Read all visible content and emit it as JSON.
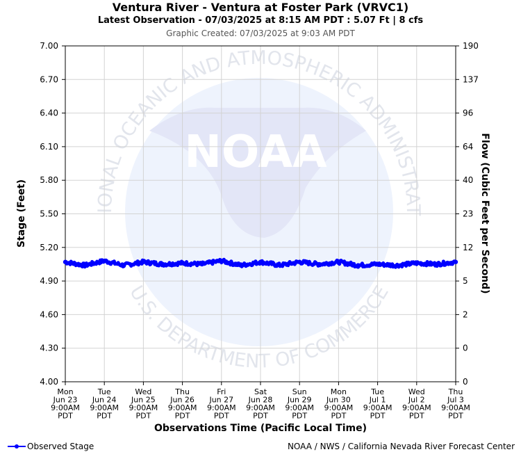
{
  "header": {
    "title": "Ventura River - Ventura at Foster Park (VRVC1)",
    "subtitle": "Latest Observation - 07/03/2025 at 8:15 AM PDT : 5.07 Ft | 8 cfs",
    "created": "Graphic Created: 07/03/2025 at 9:03 AM PDT"
  },
  "watermark": {
    "logo_text": "NOAA",
    "ring_top": "NATIONAL OCEANIC AND ATMOSPHERIC ADMINISTRATION",
    "ring_bottom": "U.S. DEPARTMENT OF COMMERCE"
  },
  "legend": {
    "label": "Observed Stage"
  },
  "footer": {
    "credit": "NOAA / NWS / California Nevada River Forecast Center"
  },
  "colors": {
    "series": "#0000ff",
    "grid": "#d3d3d3",
    "watermark": "#e8ebf8"
  },
  "chart_data": {
    "type": "line",
    "title": "Ventura River - Ventura at Foster Park (VRVC1)",
    "subtitle": "Latest Observation - 07/03/2025 at 8:15 AM PDT : 5.07 Ft | 8 cfs",
    "xlabel": "Observations Time (Pacific Local Time)",
    "ylabel": "Stage (Feet)",
    "ylabel_right": "Flow (Cubic Feet per Second)",
    "ylim": [
      4.0,
      7.0
    ],
    "y_ticks": [
      "7.00",
      "6.70",
      "6.40",
      "6.10",
      "5.80",
      "5.50",
      "5.20",
      "4.90",
      "4.60",
      "4.30",
      "4.00"
    ],
    "y_right_ticks": [
      "190",
      "137",
      "96",
      "64",
      "40",
      "23",
      "12",
      "5",
      "2",
      "0",
      "0"
    ],
    "x_ticks": [
      [
        "Mon",
        "Jun 23",
        "9:00AM",
        "PDT"
      ],
      [
        "Tue",
        "Jun 24",
        "9:00AM",
        "PDT"
      ],
      [
        "Wed",
        "Jun 25",
        "9:00AM",
        "PDT"
      ],
      [
        "Thu",
        "Jun 26",
        "9:00AM",
        "PDT"
      ],
      [
        "Fri",
        "Jun 27",
        "9:00AM",
        "PDT"
      ],
      [
        "Sat",
        "Jun 28",
        "9:00AM",
        "PDT"
      ],
      [
        "Sun",
        "Jun 29",
        "9:00AM",
        "PDT"
      ],
      [
        "Mon",
        "Jun 30",
        "9:00AM",
        "PDT"
      ],
      [
        "Tue",
        "Jul 1",
        "9:00AM",
        "PDT"
      ],
      [
        "Wed",
        "Jul 2",
        "9:00AM",
        "PDT"
      ],
      [
        "Thu",
        "Jul 3",
        "9:00AM",
        "PDT"
      ]
    ],
    "grid": true,
    "legend_position": "bottom-left",
    "series": [
      {
        "name": "Observed Stage",
        "x": [
          "Jun 23 9AM",
          "Jun 23 9PM",
          "Jun 24 9AM",
          "Jun 24 9PM",
          "Jun 25 9AM",
          "Jun 25 9PM",
          "Jun 26 9AM",
          "Jun 26 9PM",
          "Jun 27 9AM",
          "Jun 27 9PM",
          "Jun 28 9AM",
          "Jun 28 9PM",
          "Jun 29 9AM",
          "Jun 29 9PM",
          "Jun 30 9AM",
          "Jun 30 9PM",
          "Jul 1 9AM",
          "Jul 1 9PM",
          "Jul 2 9AM",
          "Jul 2 9PM",
          "Jul 3 8:15AM"
        ],
        "values": [
          5.07,
          5.04,
          5.08,
          5.04,
          5.07,
          5.05,
          5.06,
          5.05,
          5.08,
          5.04,
          5.07,
          5.04,
          5.07,
          5.05,
          5.07,
          5.04,
          5.05,
          5.04,
          5.06,
          5.05,
          5.07
        ]
      }
    ]
  }
}
